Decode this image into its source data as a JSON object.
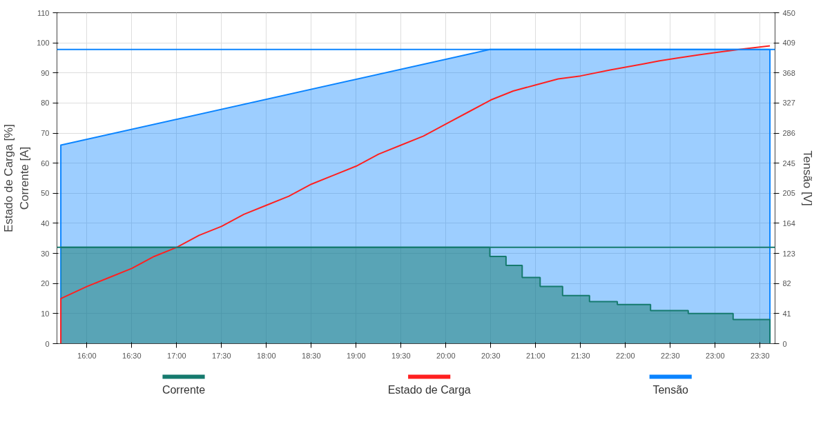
{
  "chart_data": {
    "type": "area",
    "ylabel": "Estado de Carga [%]\nCorrente [A]",
    "y2label": "Tensão [V]",
    "xlim": [
      15.667,
      23.667
    ],
    "xticks": [
      {
        "value": 16,
        "label": "16:00"
      },
      {
        "value": 16.5,
        "label": "16:30"
      },
      {
        "value": 17,
        "label": "17:00"
      },
      {
        "value": 17.5,
        "label": "17:30"
      },
      {
        "value": 18,
        "label": "18:00"
      },
      {
        "value": 18.5,
        "label": "18:30"
      },
      {
        "value": 19,
        "label": "19:00"
      },
      {
        "value": 19.5,
        "label": "19:30"
      },
      {
        "value": 20,
        "label": "20:00"
      },
      {
        "value": 20.5,
        "label": "20:30"
      },
      {
        "value": 21,
        "label": "21:00"
      },
      {
        "value": 21.5,
        "label": "21:30"
      },
      {
        "value": 22,
        "label": "22:00"
      },
      {
        "value": 22.5,
        "label": "22:30"
      },
      {
        "value": 23,
        "label": "23:00"
      },
      {
        "value": 23.5,
        "label": "23:30"
      }
    ],
    "ylim": [
      0,
      110
    ],
    "yticks": [
      0,
      10,
      20,
      30,
      40,
      50,
      60,
      70,
      80,
      90,
      100,
      110
    ],
    "y2lim": [
      0,
      450
    ],
    "y2ticks": [
      0,
      {
        "value": 40.9,
        "label": "41"
      },
      {
        "value": 81.8,
        "label": "82"
      },
      {
        "value": 122.7,
        "label": "123"
      },
      {
        "value": 163.6,
        "label": "164"
      },
      {
        "value": 204.5,
        "label": "205"
      },
      {
        "value": 245.5,
        "label": "245"
      },
      {
        "value": 286.4,
        "label": "286"
      },
      {
        "value": 327.3,
        "label": "327"
      },
      {
        "value": 368.2,
        "label": "368"
      },
      {
        "value": 409.1,
        "label": "409"
      },
      450
    ],
    "grid": true,
    "legend": "bottom",
    "series": [
      {
        "name": "Tensão",
        "color": "#0a84ff",
        "axis": "y2",
        "x": [
          15.71,
          15.71,
          20.49,
          23.61,
          23.61
        ],
        "values": [
          0,
          270,
          400,
          400,
          0
        ]
      },
      {
        "name": "Corrente",
        "color": "#157a6e",
        "type": "step",
        "x": [
          15.71,
          20.49,
          20.67,
          20.85,
          21.05,
          21.3,
          21.6,
          21.91,
          22.28,
          22.7,
          23.2,
          23.61
        ],
        "values": [
          32,
          29,
          26,
          22,
          19,
          16,
          14,
          13,
          11,
          10,
          8,
          0
        ]
      },
      {
        "name": "Estado de Carga",
        "color": "#ff2020",
        "type": "line",
        "x": [
          15.71,
          15.71,
          16.0,
          16.25,
          16.5,
          16.75,
          17.0,
          17.25,
          17.5,
          17.75,
          18.0,
          18.25,
          18.5,
          18.75,
          19.0,
          19.25,
          19.5,
          19.75,
          20.0,
          20.25,
          20.5,
          20.75,
          21.0,
          21.25,
          21.5,
          21.83,
          22.02,
          22.2,
          22.38,
          22.59,
          22.82,
          23.06,
          23.33,
          23.61
        ],
        "values": [
          0,
          15,
          19,
          22,
          25,
          29,
          32,
          36,
          39,
          43,
          46,
          49,
          53,
          56,
          59,
          63,
          66,
          69,
          73,
          77,
          81,
          84,
          86,
          88,
          89,
          91,
          92,
          93,
          94,
          95,
          96,
          97,
          98,
          99
        ]
      }
    ],
    "ref_lines": [
      {
        "axis": "y",
        "value": 32,
        "color": "#157a6e"
      },
      {
        "axis": "y2",
        "value": 400,
        "color": "#0a84ff"
      }
    ]
  }
}
